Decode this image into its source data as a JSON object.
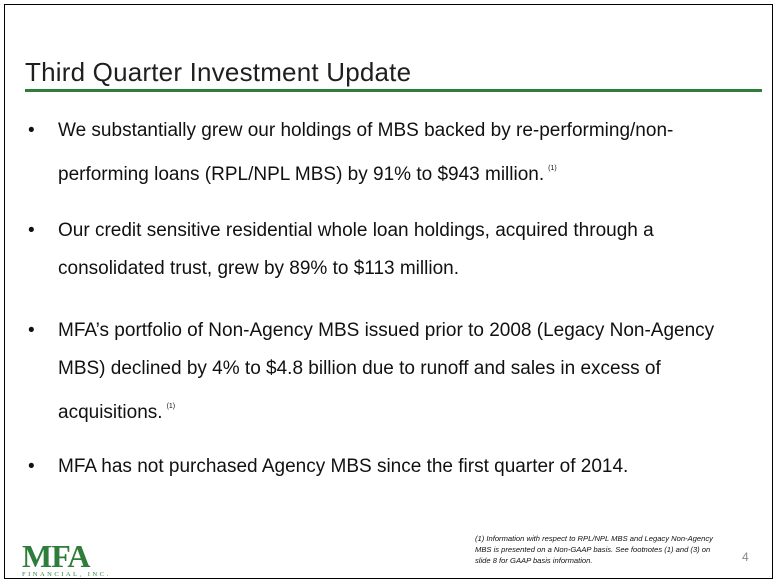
{
  "slide": {
    "title": "Third Quarter Investment Update",
    "page_number": "4",
    "bullet_glyph": "•",
    "footnote_marker": "(1)",
    "bullets": [
      {
        "line1": "We substantially grew our holdings of MBS backed by re-performing/non-",
        "line2": "performing loans (RPL/NPL MBS) by 91% to $943 million."
      },
      {
        "line1": "Our credit sensitive residential whole loan holdings, acquired through a",
        "line2": "consolidated trust, grew by 89% to $113 million."
      },
      {
        "line1": "MFA’s portfolio of  Non-Agency MBS issued prior to 2008 (Legacy Non-Agency",
        "line2": "MBS) declined by 4% to $4.8 billion due to runoff and sales in excess of",
        "line3": "acquisitions."
      },
      {
        "line1": "MFA has not purchased Agency MBS since the first quarter of 2014."
      }
    ],
    "footnote_text": {
      "line1": "(1) Information with respect to RPL/NPL MBS and Legacy Non-Agency",
      "line2": "MBS is presented on a Non-GAAP basis. See footnotes  (1) and (3) on",
      "line3": "slide 8 for GAAP basis information."
    },
    "logo": {
      "main": "MFA",
      "sub": "FINANCIAL, INC."
    },
    "colors": {
      "accent": "#2e7d3a",
      "text": "#111111",
      "page_number": "#888888"
    }
  }
}
